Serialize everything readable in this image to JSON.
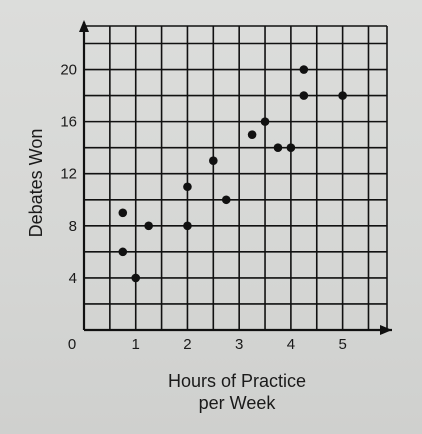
{
  "chart_data": {
    "type": "scatter",
    "xlabel_lines": [
      "Hours of Practice",
      "per Week"
    ],
    "ylabel": "Debates Won",
    "xlim": [
      0,
      6
    ],
    "ylim": [
      0,
      24
    ],
    "x_ticks": [
      0,
      1,
      2,
      3,
      4,
      5
    ],
    "y_ticks": [
      0,
      4,
      8,
      12,
      16,
      20
    ],
    "x_grid_step": 0.5,
    "y_grid_step": 2,
    "grid": true,
    "series": [
      {
        "points": [
          {
            "x": 0.75,
            "y": 9
          },
          {
            "x": 0.75,
            "y": 6
          },
          {
            "x": 1.0,
            "y": 4
          },
          {
            "x": 1.25,
            "y": 8
          },
          {
            "x": 2.0,
            "y": 11
          },
          {
            "x": 2.0,
            "y": 8
          },
          {
            "x": 2.5,
            "y": 13
          },
          {
            "x": 2.75,
            "y": 10
          },
          {
            "x": 3.25,
            "y": 15
          },
          {
            "x": 3.5,
            "y": 16
          },
          {
            "x": 3.75,
            "y": 14
          },
          {
            "x": 4.0,
            "y": 14
          },
          {
            "x": 4.25,
            "y": 20
          },
          {
            "x": 4.25,
            "y": 18
          },
          {
            "x": 5.0,
            "y": 18
          }
        ]
      }
    ]
  },
  "colors": {
    "ink": "#111111",
    "paper": "#d9dad8"
  }
}
